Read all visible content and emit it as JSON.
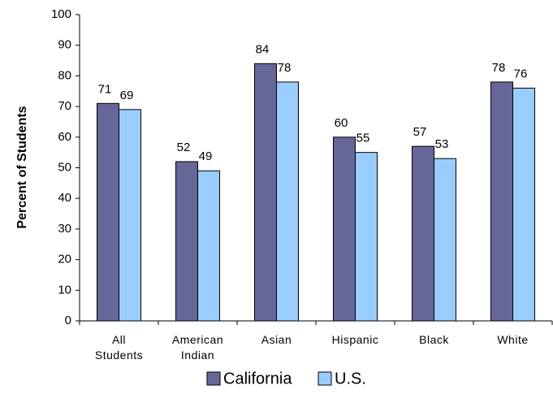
{
  "chart_data": {
    "type": "bar",
    "y_label": "Percent of Students",
    "categories": [
      "All Students",
      "American Indian",
      "Asian",
      "Hispanic",
      "Black",
      "White"
    ],
    "series": [
      {
        "name": "California",
        "color": "#666699",
        "values": [
          71,
          52,
          84,
          60,
          57,
          78
        ]
      },
      {
        "name": "U.S.",
        "color": "#99ccff",
        "values": [
          69,
          49,
          78,
          55,
          53,
          76
        ]
      }
    ],
    "ylim": [
      0,
      100
    ],
    "yticks": [
      0,
      10,
      20,
      30,
      40,
      50,
      60,
      70,
      80,
      90,
      100
    ],
    "grid": false,
    "data_labels": true,
    "legend": "bottom"
  }
}
